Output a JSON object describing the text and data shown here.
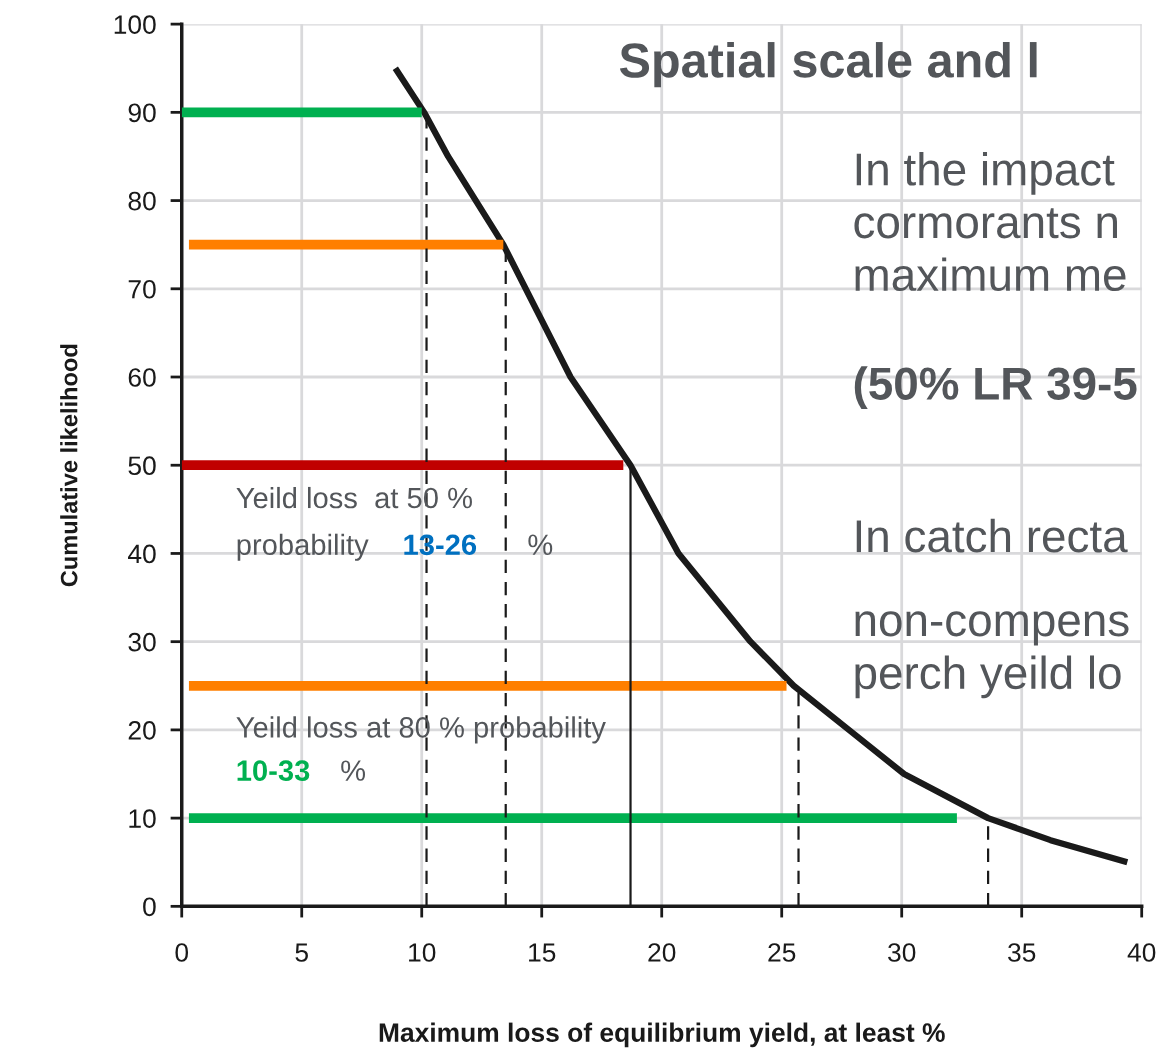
{
  "chart_data": {
    "type": "line",
    "title": "Spatial scale and l",
    "xlabel": "Maximum loss of equilibrium yield, at least %",
    "ylabel": "Cumulative likelihood",
    "xlim": [
      0,
      40
    ],
    "ylim": [
      0,
      100
    ],
    "xticks": [
      0,
      5,
      10,
      15,
      20,
      25,
      30,
      35,
      40
    ],
    "yticks": [
      0,
      10,
      20,
      30,
      40,
      50,
      60,
      70,
      80,
      90,
      100
    ],
    "grid": true,
    "marker": "none",
    "series": [
      {
        "color": "#1a1a1a",
        "line_style": "solid",
        "x": [
          8.9,
          10.1,
          11.1,
          13.4,
          16.2,
          18.7,
          20.7,
          23.7,
          25.5,
          27.8,
          30.1,
          33.6,
          36.2,
          39.4
        ],
        "values": [
          95,
          90,
          85,
          75,
          60,
          50,
          40,
          30,
          25,
          20,
          15,
          10,
          7.5,
          5
        ]
      },
      {
        "color": "#00b050",
        "line_style": "solid",
        "x": [
          0,
          10
        ],
        "values": [
          90,
          90
        ]
      },
      {
        "color": "#ff7f00",
        "line_style": "solid",
        "x": [
          0.3,
          13.4
        ],
        "values": [
          75,
          75
        ]
      },
      {
        "color": "#c00000",
        "line_style": "solid",
        "x": [
          0,
          18.4
        ],
        "values": [
          50,
          50
        ]
      },
      {
        "color": "#ff7f00",
        "line_style": "solid",
        "x": [
          0.3,
          25.2
        ],
        "values": [
          25,
          25
        ]
      },
      {
        "color": "#00b050",
        "line_style": "solid",
        "x": [
          0.3,
          32.3
        ],
        "values": [
          10,
          10
        ]
      },
      {
        "color": "#1a1a1a",
        "line_style": "dashed",
        "x": [
          10.2,
          10.2
        ],
        "values": [
          0,
          90
        ]
      },
      {
        "color": "#1a1a1a",
        "line_style": "dashed",
        "x": [
          13.5,
          13.5
        ],
        "values": [
          0,
          75
        ]
      },
      {
        "color": "#1a1a1a",
        "line_style": "solid",
        "x": [
          18.7,
          18.7
        ],
        "values": [
          0,
          50
        ]
      },
      {
        "color": "#1a1a1a",
        "line_style": "dashed",
        "x": [
          25.7,
          25.7
        ],
        "values": [
          0,
          25
        ]
      },
      {
        "color": "#1a1a1a",
        "line_style": "dashed",
        "x": [
          33.6,
          33.6
        ],
        "values": [
          0,
          10
        ]
      }
    ],
    "annotations": [
      "Yeild loss  at 50 %",
      "probability",
      "13-26",
      "%",
      "Yeild loss at 80 % probability",
      "10-33",
      "%",
      "In the impact\ncormorants n\nmaximum me",
      "(50% LR 39-5",
      "In catch recta",
      "non-compens\nperch yeild lo"
    ]
  }
}
